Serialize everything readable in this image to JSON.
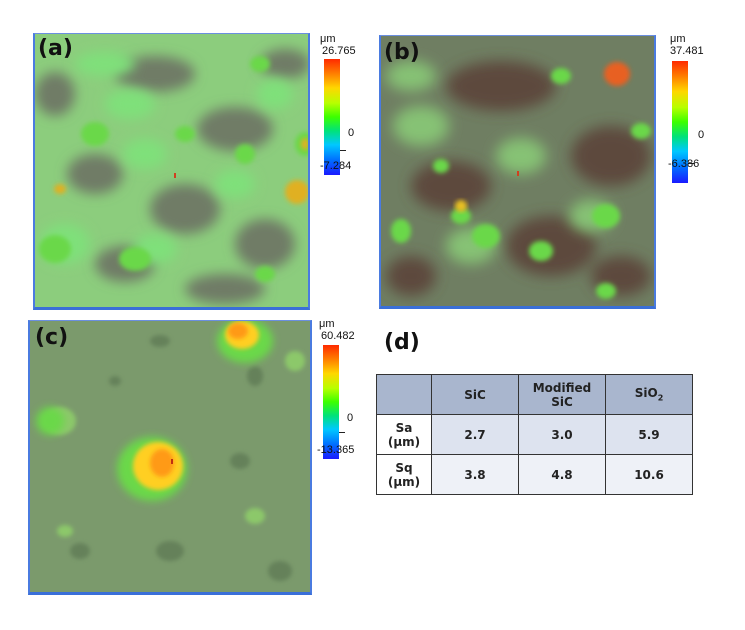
{
  "panels": [
    {
      "letter": "(a)",
      "unit": "μm",
      "max": "26.765",
      "zero": "0",
      "min": "-7.284"
    },
    {
      "letter": "(b)",
      "unit": "μm",
      "max": "37.481",
      "zero": "0",
      "min": "-6.386"
    },
    {
      "letter": "(c)",
      "unit": "μm",
      "max": "60.482",
      "zero": "0",
      "min": "-13.365"
    }
  ],
  "table": {
    "letter": "(d)",
    "headers": [
      "",
      "SiC",
      "Modified SiC",
      "SiO2"
    ],
    "header_lines": {
      "sic": "SiC",
      "mod_line1": "Modified",
      "mod_line2": "SiC",
      "sio2_base": "SiO",
      "sio2_sub": "2"
    },
    "rows": [
      {
        "label_line1": "Sa",
        "label_line2": "(μm)",
        "values": [
          "2.7",
          "3.0",
          "5.9"
        ]
      },
      {
        "label_line1": "Sq",
        "label_line2": "(μm)",
        "values": [
          "3.8",
          "4.8",
          "10.6"
        ]
      }
    ]
  },
  "colors": {
    "background_a": "#8fd07a",
    "background_b": "#6e6a58",
    "background_c": "#7a9a6a",
    "frame": "#3a6fd8",
    "table_header": "#a9b6ce"
  }
}
